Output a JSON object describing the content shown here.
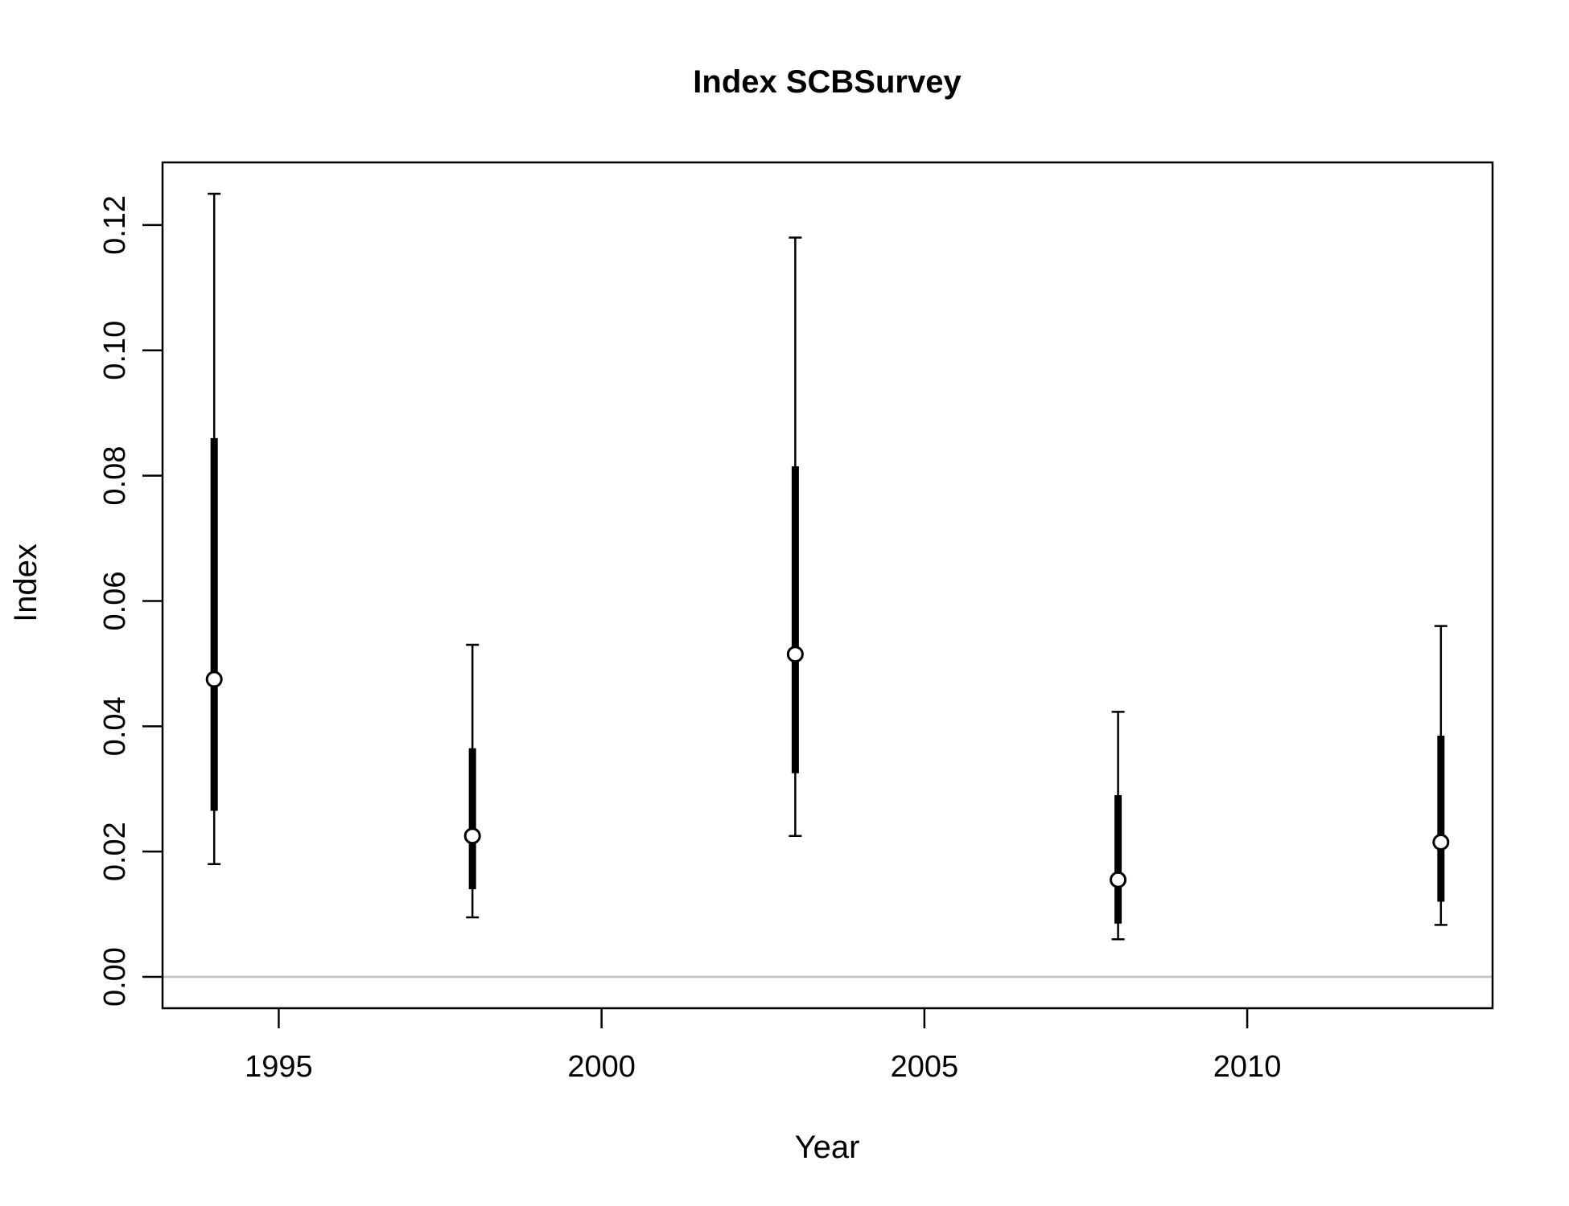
{
  "chart_data": {
    "type": "scatter",
    "title": "Index SCBSurvey",
    "xlabel": "Year",
    "ylabel": "Index",
    "xlim": [
      1993.2,
      2013.8
    ],
    "ylim": [
      -0.005,
      0.13
    ],
    "x_ticks": [
      1995,
      2000,
      2005,
      2010
    ],
    "x_tick_labels": [
      "1995",
      "2000",
      "2005",
      "2010"
    ],
    "y_ticks": [
      0.0,
      0.02,
      0.04,
      0.06,
      0.08,
      0.1,
      0.12
    ],
    "y_tick_labels": [
      "0.00",
      "0.02",
      "0.04",
      "0.06",
      "0.08",
      "0.10",
      "0.12"
    ],
    "reference_line": {
      "y": 0,
      "color": "#bebebe"
    },
    "grid": false,
    "legend": "none",
    "points": [
      {
        "x": 1994,
        "y": 0.0475,
        "inner_lo": 0.0265,
        "inner_hi": 0.086,
        "outer_lo": 0.018,
        "outer_hi": 0.125
      },
      {
        "x": 1998,
        "y": 0.0225,
        "inner_lo": 0.014,
        "inner_hi": 0.0365,
        "outer_lo": 0.0095,
        "outer_hi": 0.053
      },
      {
        "x": 2003,
        "y": 0.0515,
        "inner_lo": 0.0325,
        "inner_hi": 0.0815,
        "outer_lo": 0.0225,
        "outer_hi": 0.118
      },
      {
        "x": 2008,
        "y": 0.0155,
        "inner_lo": 0.0085,
        "inner_hi": 0.029,
        "outer_lo": 0.006,
        "outer_hi": 0.0423
      },
      {
        "x": 2013,
        "y": 0.0215,
        "inner_lo": 0.012,
        "inner_hi": 0.0385,
        "outer_lo": 0.0083,
        "outer_hi": 0.056
      }
    ],
    "colors": {
      "point_fill": "#ffffff",
      "line": "#000000",
      "zero_line": "#bebebe"
    }
  }
}
